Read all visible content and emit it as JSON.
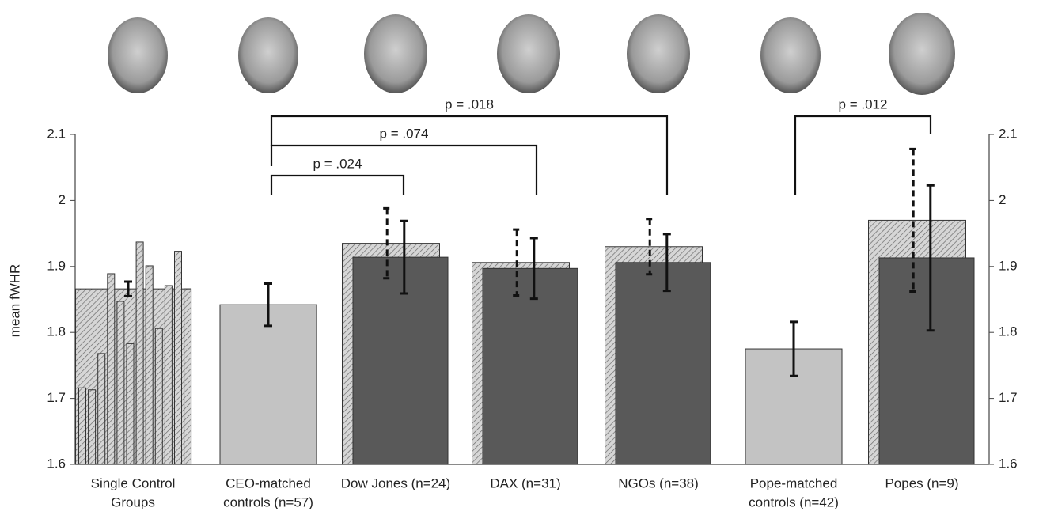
{
  "chart_data": {
    "type": "bar",
    "ylabel": "mean fWHR",
    "categories": [
      [
        "Single Control",
        "Groups"
      ],
      [
        "CEO-matched",
        "controls (n=57)"
      ],
      [
        "Dow Jones (n=24)"
      ],
      [
        "DAX (n=31)"
      ],
      [
        "NGOs (n=38)"
      ],
      [
        "Pope-matched",
        "controls (n=42)"
      ],
      [
        "Popes (n=9)"
      ]
    ],
    "series": [
      {
        "color": "#c3c3c3",
        "values": [
          null,
          1.842,
          null,
          null,
          null,
          1.775,
          null
        ],
        "errors": [
          null,
          0.032,
          null,
          null,
          null,
          0.041,
          null
        ]
      },
      {
        "color": "#c8c8c8",
        "hatched": true,
        "values": [
          1.866,
          null,
          1.935,
          1.906,
          1.93,
          null,
          1.97
        ],
        "errors": [
          0.011,
          null,
          0.053,
          0.05,
          0.042,
          null,
          0.108
        ],
        "error_style": "dashed"
      },
      {
        "color": "#595959",
        "values": [
          null,
          null,
          1.914,
          1.897,
          1.906,
          null,
          1.913
        ],
        "errors": [
          null,
          null,
          0.055,
          0.046,
          0.043,
          null,
          0.11
        ]
      }
    ],
    "single_groups": {
      "color": "#c8c8c8",
      "values": [
        1.716,
        1.713,
        1.768,
        1.889,
        1.847,
        1.783,
        1.937,
        1.901,
        1.806,
        1.871,
        1.923,
        1.866
      ]
    },
    "comparisons": [
      "p = .024",
      "p = .074",
      "p = .018",
      "p = .012"
    ],
    "ylim": [
      1.6,
      2.1
    ],
    "yticks": [
      1.6,
      1.7,
      1.8,
      1.9,
      2.0,
      2.1
    ],
    "y2lim": [
      1.6,
      2.1
    ],
    "y2ticks": [
      1.6,
      1.7,
      1.8,
      1.9,
      2.0,
      2.1
    ]
  }
}
